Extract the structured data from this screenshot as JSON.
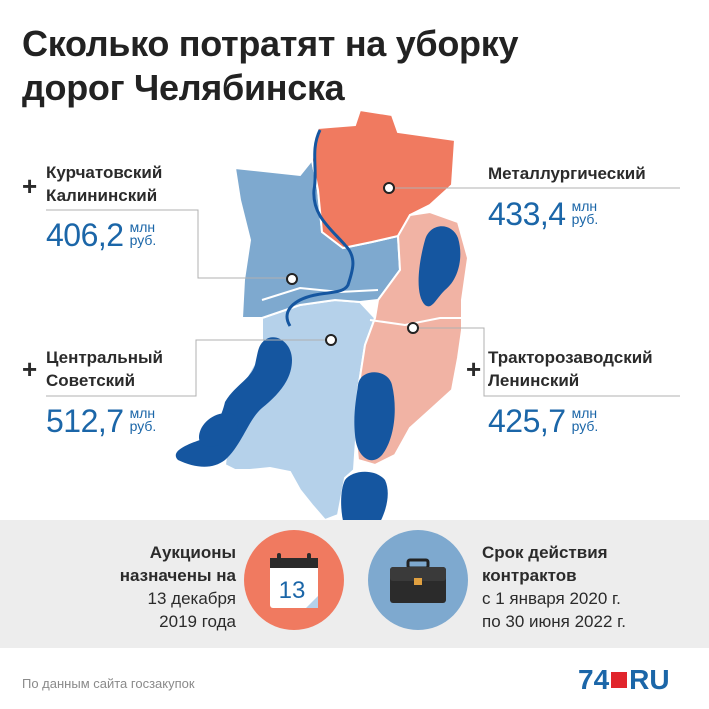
{
  "title_line1": "Сколько потратят на уборку",
  "title_line2": "дорог Челябинска",
  "districts": [
    {
      "line1": "Курчатовский",
      "line2": "Калининский",
      "amount": "406,2",
      "unit_line1": "млн",
      "unit_line2": "руб.",
      "plus": "+"
    },
    {
      "line1": "Металлургический",
      "line2": "",
      "amount": "433,4",
      "unit_line1": "млн",
      "unit_line2": "руб.",
      "plus": ""
    },
    {
      "line1": "Центральный",
      "line2": "Советский",
      "amount": "512,7",
      "unit_line1": "млн",
      "unit_line2": "руб.",
      "plus": "+"
    },
    {
      "line1": "Тракторозаводский",
      "line2": "Ленинский",
      "amount": "425,7",
      "unit_line1": "млн",
      "unit_line2": "руб.",
      "plus": "+"
    }
  ],
  "auction": {
    "line1": "Аукционы",
    "line2": "назначены на",
    "line3": "13 декабря",
    "line4": "2019 года",
    "calendar_day": "13"
  },
  "contract": {
    "line1": "Срок действия",
    "line2": "контрактов",
    "line3": "с 1 января 2020 г.",
    "line4": "по 30 июня 2022 г."
  },
  "source": "По данным сайта госзакупок",
  "logo": {
    "number": "74",
    "suffix": "RU"
  },
  "colors": {
    "accent_blue": "#1b66a8",
    "metallurgichesky": "#f07a60",
    "traktorozavodsky": "#f1b3a4",
    "kurchatovsky": "#7ea9cf",
    "tsentralny": "#b5d1ea",
    "water": "#1556a0",
    "calendar_circle": "#f07a60",
    "briefcase_circle": "#7ea9cf",
    "logo_red": "#e1252c"
  },
  "icons": [
    "calendar-icon",
    "briefcase-icon"
  ]
}
